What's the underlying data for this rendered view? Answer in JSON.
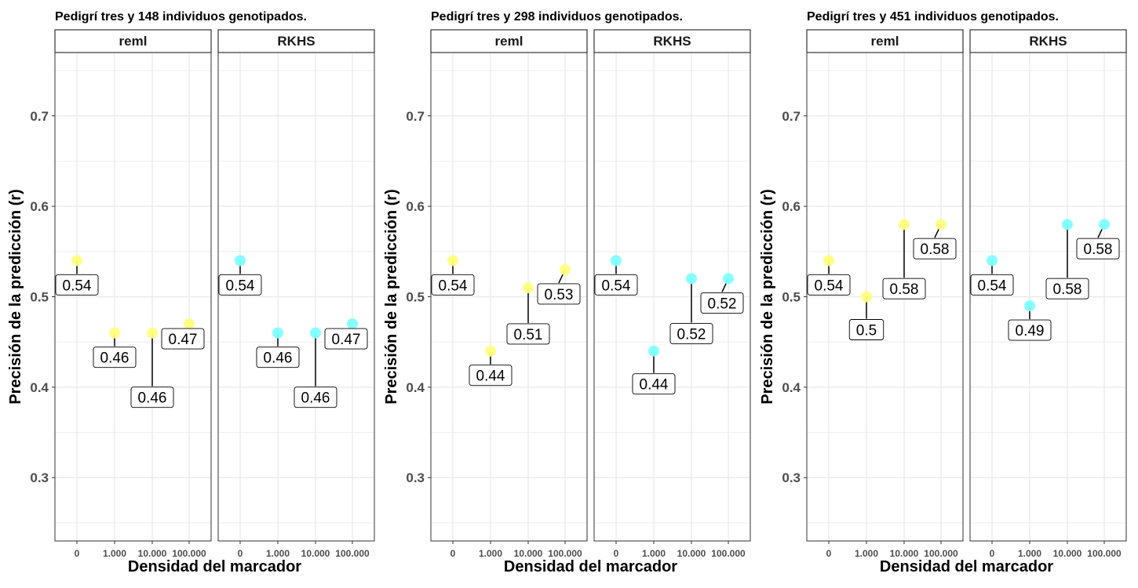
{
  "colors": {
    "reml": "#FFFF80",
    "RKHS": "#80FFFF",
    "panel_border": "#333333",
    "strip_fill": "#FFFFFF",
    "grid": "#EBEBEB",
    "label_text": "#000000",
    "axis_text": "#4D4D4D"
  },
  "chart_data": [
    {
      "type": "scatter",
      "title": "Pedigrí tres y 148 individuos genotipados.",
      "xlabel": "Densidad del marcador",
      "ylabel": "Precisión de la predicción (r)",
      "ylim": [
        0.23,
        0.77
      ],
      "yticks": [
        "0.3",
        "0.4",
        "0.5",
        "0.6",
        "0.7"
      ],
      "categories": [
        "0",
        "1.000",
        "10.000",
        "100.000"
      ],
      "grid": true,
      "legend": "none",
      "facets": [
        {
          "name": "reml",
          "values": [
            0.54,
            0.46,
            0.46,
            0.47
          ],
          "labels": [
            "0.54",
            "0.46",
            "0.46",
            "0.47"
          ]
        },
        {
          "name": "RKHS",
          "values": [
            0.54,
            0.46,
            0.46,
            0.47
          ],
          "labels": [
            "0.54",
            "0.46",
            "0.46",
            "0.47"
          ]
        }
      ]
    },
    {
      "type": "scatter",
      "title": "Pedigrí tres y 298 individuos genotipados.",
      "xlabel": "Densidad del marcador",
      "ylabel": "Precisión de la predicción (r)",
      "ylim": [
        0.23,
        0.77
      ],
      "yticks": [
        "0.3",
        "0.4",
        "0.5",
        "0.6",
        "0.7"
      ],
      "categories": [
        "0",
        "1.000",
        "10.000",
        "100.000"
      ],
      "grid": true,
      "legend": "none",
      "facets": [
        {
          "name": "reml",
          "values": [
            0.54,
            0.44,
            0.51,
            0.53
          ],
          "labels": [
            "0.54",
            "0.44",
            "0.51",
            "0.53"
          ]
        },
        {
          "name": "RKHS",
          "values": [
            0.54,
            0.44,
            0.52,
            0.52
          ],
          "labels": [
            "0.54",
            "0.44",
            "0.52",
            "0.52"
          ]
        }
      ]
    },
    {
      "type": "scatter",
      "title": "Pedigrí tres y 451 individuos genotipados.",
      "xlabel": "Densidad del marcador",
      "ylabel": "Precisión de la predicción (r)",
      "ylim": [
        0.23,
        0.77
      ],
      "yticks": [
        "0.3",
        "0.4",
        "0.5",
        "0.6",
        "0.7"
      ],
      "categories": [
        "0",
        "1.000",
        "10.000",
        "100.000"
      ],
      "grid": true,
      "legend": "none",
      "facets": [
        {
          "name": "reml",
          "values": [
            0.54,
            0.5,
            0.58,
            0.58
          ],
          "labels": [
            "0.54",
            "0.5",
            "0.58",
            "0.58"
          ]
        },
        {
          "name": "RKHS",
          "values": [
            0.54,
            0.49,
            0.58,
            0.58
          ],
          "labels": [
            "0.54",
            "0.49",
            "0.58",
            "0.58"
          ]
        }
      ]
    }
  ]
}
